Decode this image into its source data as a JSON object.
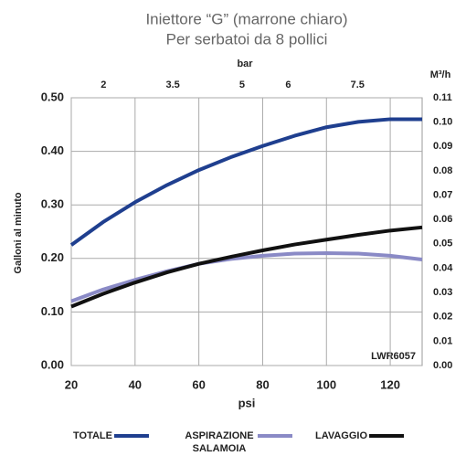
{
  "chart_data": {
    "type": "line",
    "title": "Iniettore “G” (marrone chiaro)",
    "subtitle": "Per serbatoi da 8 pollici",
    "x_label": "psi",
    "x2_label": "bar",
    "y_label": "Galloni al minuto",
    "y2_label": "M³/h",
    "annotation": "LWR6057",
    "x": [
      20,
      30,
      40,
      50,
      60,
      70,
      80,
      90,
      100,
      110,
      120,
      130
    ],
    "series": [
      {
        "name": "TOTALE",
        "color": "#1f3f8f",
        "values": [
          0.225,
          0.268,
          0.305,
          0.337,
          0.365,
          0.389,
          0.41,
          0.429,
          0.445,
          0.455,
          0.46,
          0.46
        ]
      },
      {
        "name": "ASPIRAZIONE SALAMOIA",
        "color": "#8a8ac6",
        "values": [
          0.12,
          0.142,
          0.16,
          0.176,
          0.19,
          0.199,
          0.205,
          0.209,
          0.21,
          0.209,
          0.205,
          0.198
        ]
      },
      {
        "name": "LAVAGGIO",
        "color": "#111111",
        "values": [
          0.11,
          0.134,
          0.155,
          0.174,
          0.19,
          0.203,
          0.215,
          0.226,
          0.235,
          0.244,
          0.252,
          0.258
        ]
      }
    ],
    "xlim": [
      20,
      130
    ],
    "xticks": [
      20,
      40,
      60,
      80,
      100,
      120
    ],
    "x2lim": [
      1.3,
      8.9
    ],
    "x2ticks": [
      2,
      3.5,
      5,
      6,
      7.5
    ],
    "ylim": [
      0,
      0.5
    ],
    "yticks": [
      {
        "value": 0,
        "label": "0.00"
      },
      {
        "value": 0.1,
        "label": "0.10"
      },
      {
        "value": 0.2,
        "label": "0.20"
      },
      {
        "value": 0.3,
        "label": "0.30"
      },
      {
        "value": 0.4,
        "label": "0.40"
      },
      {
        "value": 0.5,
        "label": "0.50"
      }
    ],
    "y2lim": [
      0,
      0.11
    ],
    "y2ticks": [
      {
        "value": 0,
        "label": "0.00"
      },
      {
        "value": 0.01,
        "label": "0.01"
      },
      {
        "value": 0.02,
        "label": "0.02"
      },
      {
        "value": 0.03,
        "label": "0.03"
      },
      {
        "value": 0.04,
        "label": "0.04"
      },
      {
        "value": 0.05,
        "label": "0.05"
      },
      {
        "value": 0.06,
        "label": "0.06"
      },
      {
        "value": 0.07,
        "label": "0.07"
      },
      {
        "value": 0.08,
        "label": "0.08"
      },
      {
        "value": 0.09,
        "label": "0.09"
      },
      {
        "value": 0.1,
        "label": "0.10"
      },
      {
        "value": 0.11,
        "label": "0.11"
      }
    ],
    "grid": true
  }
}
